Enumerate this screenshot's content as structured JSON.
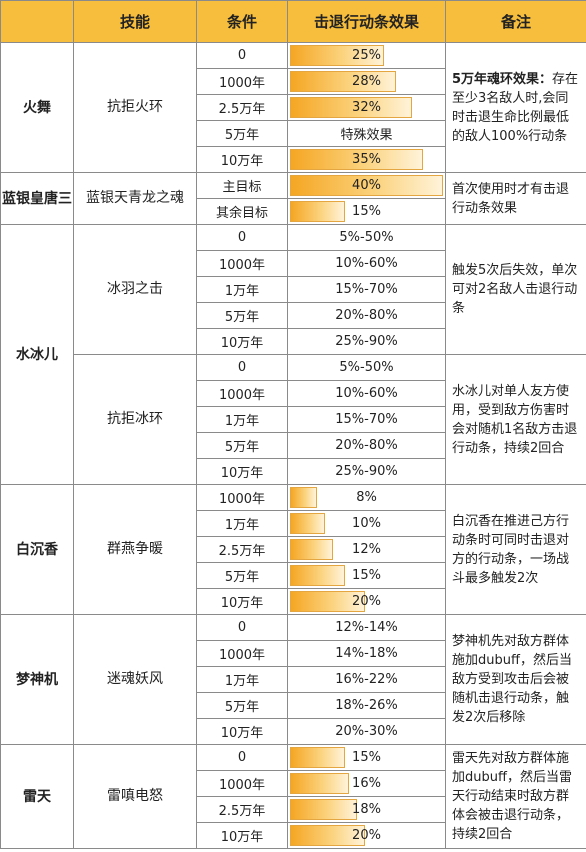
{
  "header": {
    "c0": "",
    "c1": "技能",
    "c2": "条件",
    "c3": "击退行动条效果",
    "c4": "备注"
  },
  "colors": {
    "header_bg": "#f6be3c",
    "bar": "#f5a623"
  },
  "rows": {
    "huowu": {
      "hero": "火舞",
      "skill": "抗拒火环",
      "note_lead": "5万年魂环效果：",
      "note_rest": "存在至少3名敌人时,会同时击退生命比例最低的敌人100%行动条",
      "cond": [
        "0",
        "1000年",
        "2.5万年",
        "5万年",
        "10万年"
      ],
      "eff": [
        "25%",
        "28%",
        "32%",
        "特殊效果",
        "35%"
      ],
      "level": [
        0.25,
        0.28,
        0.32,
        null,
        0.35
      ]
    },
    "lanyin": {
      "hero": "蓝银皇唐三",
      "skill": "蓝银天青龙之魂",
      "note": "首次使用时才有击退行动条效果",
      "cond": [
        "主目标",
        "其余目标"
      ],
      "eff": [
        "40%",
        "15%"
      ],
      "level": [
        0.4,
        0.15
      ]
    },
    "shuibinger": {
      "hero": "水冰儿",
      "skill1": "冰羽之击",
      "note1": "触发5次后失效，单次可对2名敌人击退行动条",
      "cond1": [
        "0",
        "1000年",
        "1万年",
        "5万年",
        "10万年"
      ],
      "eff1": [
        "5%-50%",
        "10%-60%",
        "15%-70%",
        "20%-80%",
        "25%-90%"
      ],
      "skill2": "抗拒冰环",
      "note2": "水冰儿对单人友方使用，受到敌方伤害时会对随机1名敌方击退行动条，持续2回合",
      "cond2": [
        "0",
        "1000年",
        "1万年",
        "5万年",
        "10万年"
      ],
      "eff2": [
        "5%-50%",
        "10%-60%",
        "15%-70%",
        "20%-80%",
        "25%-90%"
      ]
    },
    "baichenxiang": {
      "hero": "白沉香",
      "skill": "群燕争暖",
      "note": "白沉香在推进己方行动条时可同时击退对方的行动条，一场战斗最多触发2次",
      "cond": [
        "1000年",
        "1万年",
        "2.5万年",
        "5万年",
        "10万年"
      ],
      "eff": [
        "8%",
        "10%",
        "12%",
        "15%",
        "20%"
      ],
      "level": [
        0.08,
        0.1,
        0.12,
        0.15,
        0.2
      ]
    },
    "mengshenji": {
      "hero": "梦神机",
      "skill": "迷魂妖风",
      "note": "梦神机先对敌方群体施加dubuff，然后当敌方受到攻击后会被随机击退行动条，触发2次后移除",
      "cond": [
        "0",
        "1000年",
        "1万年",
        "5万年",
        "10万年"
      ],
      "eff": [
        "12%-14%",
        "14%-18%",
        "16%-22%",
        "18%-26%",
        "20%-30%"
      ]
    },
    "leitian": {
      "hero": "雷天",
      "skill": "雷嗔电怒",
      "note": "雷天先对敌方群体施加dubuff，然后当雷天行动结束时敌方群体会被击退行动条，持续2回合",
      "cond": [
        "0",
        "1000年",
        "2.5万年",
        "10万年"
      ],
      "eff": [
        "15%",
        "16%",
        "18%",
        "20%"
      ],
      "level": [
        0.15,
        0.16,
        0.18,
        0.2
      ]
    }
  }
}
